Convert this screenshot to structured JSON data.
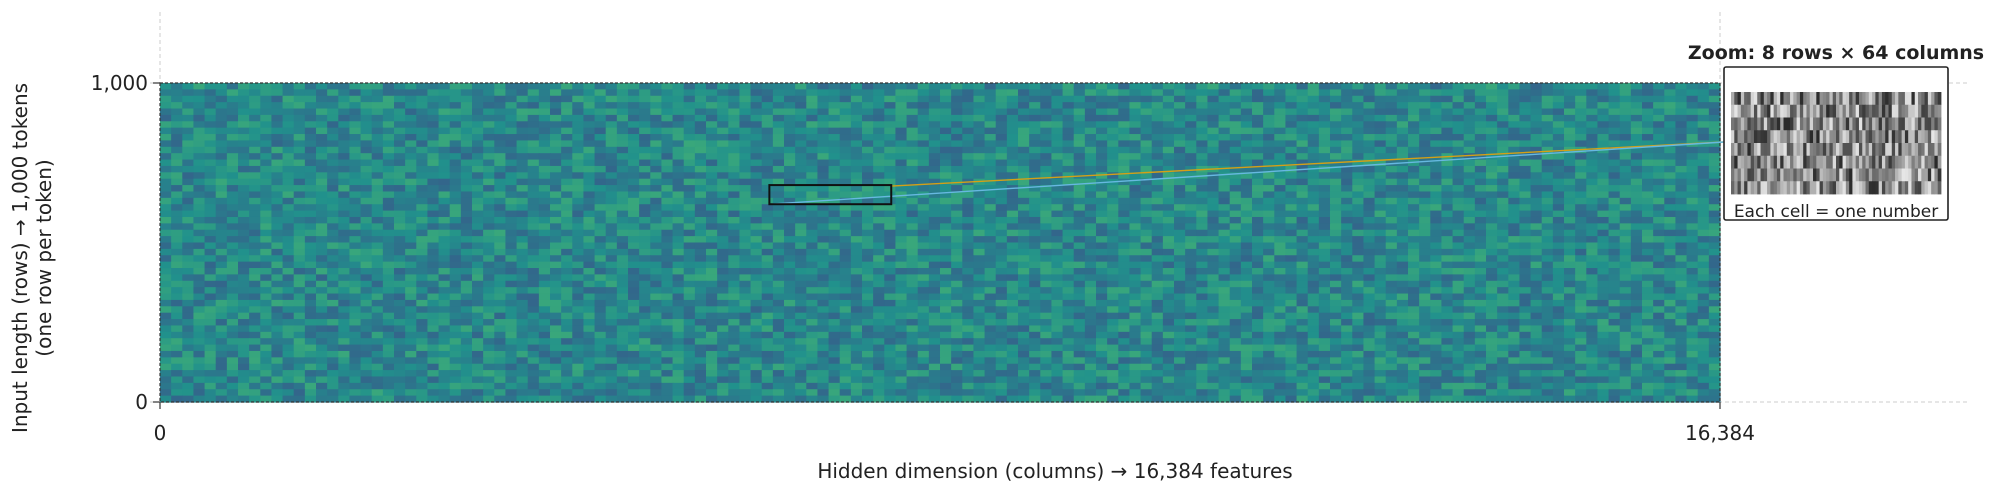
{
  "chart_data": {
    "type": "heatmap",
    "title": "",
    "xlabel": "Hidden dimension (columns) → 16,384 features",
    "ylabel_line1": "Input length (rows) → 1,000 tokens",
    "ylabel_line2": "(one row per token)",
    "x_ticks": [
      {
        "value": 0,
        "label": "0"
      },
      {
        "value": 16384,
        "label": "16,384"
      }
    ],
    "y_ticks": [
      {
        "value": 0,
        "label": "0"
      },
      {
        "value": 1000,
        "label": "1,000"
      }
    ],
    "xlim": [
      0,
      16384
    ],
    "ylim": [
      0,
      1000
    ],
    "grid": true,
    "heatmap": {
      "rows": 1000,
      "columns": 16384,
      "colormap": "viridis",
      "rendered_cells_x": 140,
      "rendered_cells_y": 50,
      "value_range": [
        0.33,
        0.6
      ]
    },
    "zoom": {
      "title": "Zoom: 8 rows × 64 columns",
      "caption": "Each cell = one number",
      "rows": 8,
      "columns": 64,
      "source_region": {
        "x_start": 6400,
        "x_end": 7680,
        "y_start": 620,
        "y_end": 680
      },
      "colormap": "gray"
    },
    "colors": {
      "connector_top": "#d4a017",
      "connector_bottom": "#66b8e0",
      "frame": "#111111",
      "grid": "#cccccc"
    }
  }
}
